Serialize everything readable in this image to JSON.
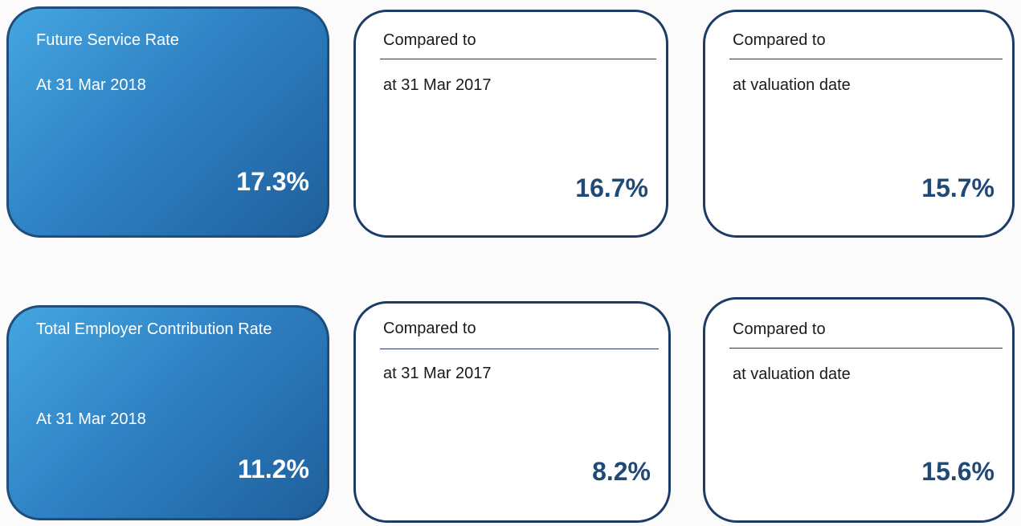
{
  "rows": [
    {
      "main": {
        "title": "Future Service Rate",
        "date": "At 31 Mar 2018",
        "value": "17.3%"
      },
      "comparisons": [
        {
          "heading": "Compared to",
          "label": "at 31 Mar 2017",
          "value": "16.7%"
        },
        {
          "heading": "Compared to",
          "label": "at valuation date",
          "value": "15.7%"
        }
      ]
    },
    {
      "main": {
        "title": "Total Employer Contribution Rate",
        "date": "At 31 Mar 2018",
        "value": "11.2%"
      },
      "comparisons": [
        {
          "heading": "Compared to",
          "label": "at 31 Mar 2017",
          "value": "8.2%"
        },
        {
          "heading": "Compared to",
          "label": "at valuation date",
          "value": "15.6%"
        }
      ]
    }
  ]
}
